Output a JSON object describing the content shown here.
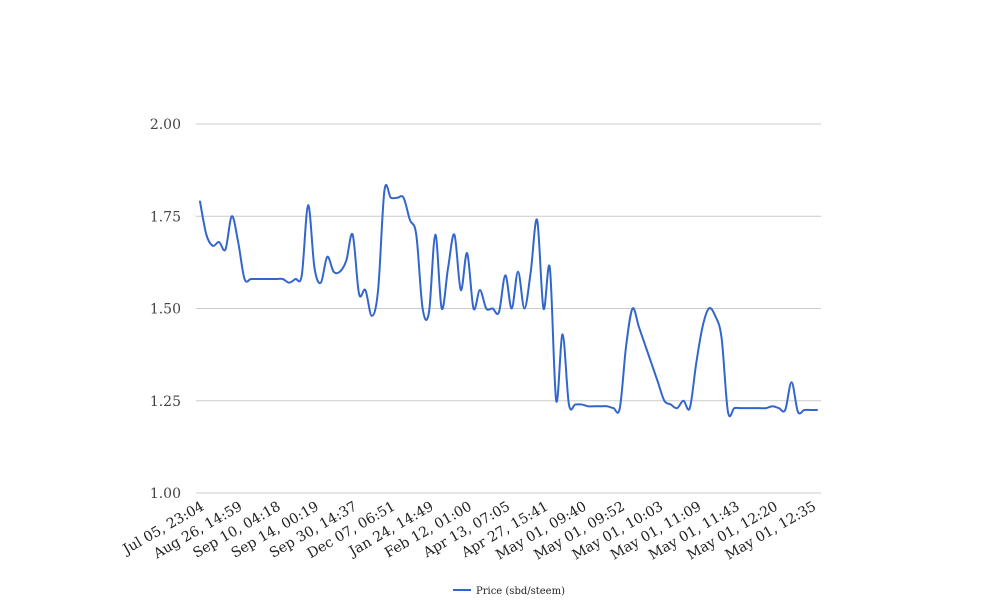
{
  "chart_data": {
    "type": "line",
    "title": "",
    "xlabel": "",
    "ylabel": "",
    "ylim": [
      1.0,
      2.0
    ],
    "yticks": [
      "1.00",
      "1.25",
      "1.50",
      "1.75",
      "2.00"
    ],
    "x_tick_labels": [
      "Jul 05, 23:04",
      "Aug 26, 14:59",
      "Sep 10, 04:18",
      "Sep 14, 00:19",
      "Sep 30, 14:37",
      "Dec 07, 06:51",
      "Jan 24, 14:49",
      "Feb 12, 01:00",
      "Apr 13, 07:05",
      "Apr 27, 15:41",
      "May 01, 09:40",
      "May 01, 09:52",
      "May 01, 10:03",
      "May 01, 11:09",
      "May 01, 11:43",
      "May 01, 12:20",
      "May 01, 12:35"
    ],
    "grid": true,
    "legend_position": "bottom",
    "series": [
      {
        "name": "Price (sbd/steem)",
        "color": "#3366cc",
        "values": [
          1.79,
          1.7,
          1.67,
          1.68,
          1.66,
          1.75,
          1.68,
          1.58,
          1.58,
          1.58,
          1.58,
          1.58,
          1.58,
          1.58,
          1.57,
          1.58,
          1.59,
          1.78,
          1.61,
          1.57,
          1.64,
          1.6,
          1.6,
          1.63,
          1.7,
          1.54,
          1.55,
          1.48,
          1.55,
          1.82,
          1.8,
          1.8,
          1.8,
          1.74,
          1.7,
          1.5,
          1.49,
          1.7,
          1.5,
          1.61,
          1.7,
          1.55,
          1.65,
          1.5,
          1.55,
          1.5,
          1.5,
          1.49,
          1.59,
          1.5,
          1.6,
          1.5,
          1.6,
          1.74,
          1.5,
          1.61,
          1.25,
          1.43,
          1.24,
          1.24,
          1.24,
          1.235,
          1.235,
          1.235,
          1.235,
          1.23,
          1.23,
          1.4,
          1.5,
          1.45,
          1.4,
          1.35,
          1.3,
          1.25,
          1.24,
          1.23,
          1.25,
          1.23,
          1.35,
          1.45,
          1.5,
          1.48,
          1.42,
          1.22,
          1.23,
          1.23,
          1.23,
          1.23,
          1.23,
          1.23,
          1.235,
          1.23,
          1.225,
          1.3,
          1.22,
          1.225,
          1.225,
          1.225
        ]
      }
    ]
  }
}
